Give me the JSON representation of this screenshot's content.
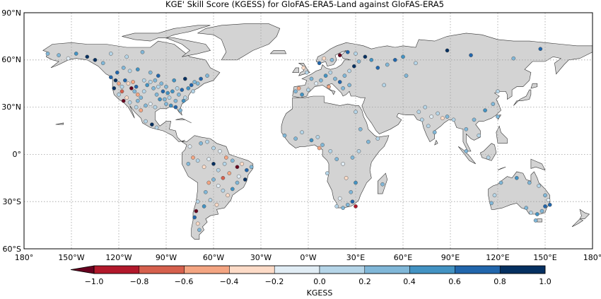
{
  "title": "KGE' Skill Score (KGESS) for GloFAS-ERA5-Land against GloFAS-ERA5",
  "lat_labels": [
    "90°N",
    "60°N",
    "30°N",
    "0°",
    "30°S",
    "60°S"
  ],
  "lon_labels": [
    "180°",
    "150°W",
    "120°W",
    "90°W",
    "60°W",
    "30°W",
    "0°W",
    "30°E",
    "60°E",
    "90°E",
    "120°E",
    "150°E",
    "180°"
  ],
  "colorbar": {
    "label": "KGESS",
    "tick_labels": [
      "−1.0",
      "−0.8",
      "−0.6",
      "−0.4",
      "−0.2",
      "0.0",
      "0.2",
      "0.4",
      "0.6",
      "0.8",
      "1.0"
    ],
    "bins": [
      "#67001f",
      "#b2182b",
      "#d6604d",
      "#f4a582",
      "#fddbc7",
      "#e1edf5",
      "#b5d5e8",
      "#80b7d8",
      "#4393c3",
      "#2166ac",
      "#053061"
    ],
    "arrow_color": "#67001f"
  },
  "colors": {
    "ocean": "#ffffff",
    "land": "#d3d3d3",
    "coast": "#333333",
    "grid": "#a0a0a0"
  },
  "stations": [
    {
      "lon": -125,
      "lat": 49,
      "v": 0.6
    },
    {
      "lon": -122,
      "lat": 47,
      "v": 0.9
    },
    {
      "lon": -120,
      "lat": 45,
      "v": -0.5
    },
    {
      "lon": -118,
      "lat": 43,
      "v": 0.2
    },
    {
      "lon": -116,
      "lat": 47,
      "v": 0.7
    },
    {
      "lon": -114,
      "lat": 45,
      "v": -0.3
    },
    {
      "lon": -112,
      "lat": 42,
      "v": -0.85
    },
    {
      "lon": -110,
      "lat": 40,
      "v": 0.4
    },
    {
      "lon": -108,
      "lat": 38,
      "v": -0.6
    },
    {
      "lon": -106,
      "lat": 36,
      "v": 0.3
    },
    {
      "lon": -104,
      "lat": 40,
      "v": 0.1
    },
    {
      "lon": -102,
      "lat": 44,
      "v": 0.5
    },
    {
      "lon": -100,
      "lat": 46,
      "v": 0.2
    },
    {
      "lon": -98,
      "lat": 42,
      "v": 0.4
    },
    {
      "lon": -96,
      "lat": 38,
      "v": 0.3
    },
    {
      "lon": -94,
      "lat": 35,
      "v": 0.5
    },
    {
      "lon": -92,
      "lat": 40,
      "v": 0.6
    },
    {
      "lon": -90,
      "lat": 43,
      "v": 0.3
    },
    {
      "lon": -88,
      "lat": 36,
      "v": 0.2
    },
    {
      "lon": -86,
      "lat": 40,
      "v": 0.5
    },
    {
      "lon": -84,
      "lat": 34,
      "v": 0.4
    },
    {
      "lon": -82,
      "lat": 38,
      "v": 0.3
    },
    {
      "lon": -80,
      "lat": 41,
      "v": 0.6
    },
    {
      "lon": -78,
      "lat": 36,
      "v": 0.2
    },
    {
      "lon": -76,
      "lat": 42,
      "v": 0.5
    },
    {
      "lon": -74,
      "lat": 44,
      "v": 0.7
    },
    {
      "lon": -72,
      "lat": 46,
      "v": 0.4
    },
    {
      "lon": -70,
      "lat": 45,
      "v": 0.3
    },
    {
      "lon": -97,
      "lat": 30,
      "v": 0.2
    },
    {
      "lon": -100,
      "lat": 32,
      "v": -0.2
    },
    {
      "lon": -103,
      "lat": 31,
      "v": 0.3
    },
    {
      "lon": -106,
      "lat": 28,
      "v": -0.4
    },
    {
      "lon": -109,
      "lat": 30,
      "v": 0.1
    },
    {
      "lon": -117,
      "lat": 34,
      "v": -0.9
    },
    {
      "lon": -120,
      "lat": 38,
      "v": 0.1
    },
    {
      "lon": -123,
      "lat": 42,
      "v": 0.8
    },
    {
      "lon": -121,
      "lat": 52,
      "v": 0.7
    },
    {
      "lon": -117,
      "lat": 55,
      "v": 0.4
    },
    {
      "lon": -113,
      "lat": 53,
      "v": 0.2
    },
    {
      "lon": -108,
      "lat": 54,
      "v": 0.5
    },
    {
      "lon": -100,
      "lat": 52,
      "v": 0.3
    },
    {
      "lon": -95,
      "lat": 50,
      "v": 0.6
    },
    {
      "lon": -130,
      "lat": 58,
      "v": 0.3
    },
    {
      "lon": -135,
      "lat": 60,
      "v": 0.8
    },
    {
      "lon": -140,
      "lat": 62,
      "v": 0.9
    },
    {
      "lon": -147,
      "lat": 64,
      "v": 0.5
    },
    {
      "lon": -152,
      "lat": 61,
      "v": -0.2
    },
    {
      "lon": -158,
      "lat": 63,
      "v": 0.3
    },
    {
      "lon": -165,
      "lat": 64,
      "v": 0.4
    },
    {
      "lon": -125,
      "lat": 64,
      "v": 0.2
    },
    {
      "lon": -115,
      "lat": 62,
      "v": 0.1
    },
    {
      "lon": -105,
      "lat": 65,
      "v": 0.3
    },
    {
      "lon": -85,
      "lat": 47,
      "v": 0.5
    },
    {
      "lon": -78,
      "lat": 48,
      "v": 0.8
    },
    {
      "lon": -68,
      "lat": 48,
      "v": 0.6
    },
    {
      "lon": -64,
      "lat": 50,
      "v": 0.4
    },
    {
      "lon": -90,
      "lat": 32,
      "v": 0.3
    },
    {
      "lon": -87,
      "lat": 31,
      "v": 0.5
    },
    {
      "lon": -81,
      "lat": 28,
      "v": 0.4
    },
    {
      "lon": -84,
      "lat": 30,
      "v": 0.6
    },
    {
      "lon": -103,
      "lat": 21,
      "v": 0.1
    },
    {
      "lon": -99,
      "lat": 19,
      "v": 0.9
    },
    {
      "lon": -96,
      "lat": 17,
      "v": 0.2
    },
    {
      "lon": -118,
      "lat": 40,
      "v": -0.7
    },
    {
      "lon": -111,
      "lat": 46,
      "v": -0.4
    },
    {
      "lon": -109,
      "lat": 43,
      "v": 0.6
    },
    {
      "lon": -104,
      "lat": 47,
      "v": 0.2
    },
    {
      "lon": -97,
      "lat": 47,
      "v": 0.4
    },
    {
      "lon": -93,
      "lat": 45,
      "v": 0.3
    },
    {
      "lon": -89,
      "lat": 39,
      "v": 0.5
    },
    {
      "lon": -83,
      "lat": 42,
      "v": 0.2
    },
    {
      "lon": -79,
      "lat": 34,
      "v": 0.5
    },
    {
      "lon": -115,
      "lat": 36,
      "v": -0.3
    },
    {
      "lon": -113,
      "lat": 33,
      "v": 0.2
    },
    {
      "lon": -108,
      "lat": 34,
      "v": 0.4
    },
    {
      "lon": -95,
      "lat": 43,
      "v": 0.1
    },
    {
      "lon": -91,
      "lat": 35,
      "v": 0.3
    },
    {
      "lon": -73,
      "lat": 40,
      "v": 0.2
    },
    {
      "lon": -60,
      "lat": 4,
      "v": 0.2
    },
    {
      "lon": -56,
      "lat": 2,
      "v": -0.2
    },
    {
      "lon": -52,
      "lat": -2,
      "v": -0.6
    },
    {
      "lon": -48,
      "lat": -4,
      "v": 0.3
    },
    {
      "lon": -45,
      "lat": -8,
      "v": -0.85
    },
    {
      "lon": -42,
      "lat": -6,
      "v": -0.3
    },
    {
      "lon": -39,
      "lat": -10,
      "v": 0.6
    },
    {
      "lon": -36,
      "lat": -8,
      "v": 0.4
    },
    {
      "lon": -50,
      "lat": -12,
      "v": -0.4
    },
    {
      "lon": -54,
      "lat": -15,
      "v": -0.7
    },
    {
      "lon": -57,
      "lat": -10,
      "v": 0.1
    },
    {
      "lon": -60,
      "lat": -6,
      "v": 0.8
    },
    {
      "lon": -63,
      "lat": -3,
      "v": -0.2
    },
    {
      "lon": -66,
      "lat": -8,
      "v": -0.3
    },
    {
      "lon": -70,
      "lat": -4,
      "v": 0.2
    },
    {
      "lon": -73,
      "lat": -2,
      "v": -0.5
    },
    {
      "lon": -76,
      "lat": -6,
      "v": 0.3
    },
    {
      "lon": -75,
      "lat": 5,
      "v": -0.2
    },
    {
      "lon": -68,
      "lat": 7,
      "v": 0.4
    },
    {
      "lon": -64,
      "lat": 8,
      "v": 0.2
    },
    {
      "lon": -45,
      "lat": -18,
      "v": 0.3
    },
    {
      "lon": -48,
      "lat": -22,
      "v": 0.5
    },
    {
      "lon": -51,
      "lat": -26,
      "v": -0.3
    },
    {
      "lon": -54,
      "lat": -23,
      "v": 0.1
    },
    {
      "lon": -57,
      "lat": -20,
      "v": -0.2
    },
    {
      "lon": -60,
      "lat": -16,
      "v": 0.3
    },
    {
      "lon": -63,
      "lat": -18,
      "v": -0.4
    },
    {
      "lon": -65,
      "lat": -24,
      "v": 0.4
    },
    {
      "lon": -62,
      "lat": -29,
      "v": 0.2
    },
    {
      "lon": -58,
      "lat": -32,
      "v": -0.3
    },
    {
      "lon": -66,
      "lat": -33,
      "v": 0.5
    },
    {
      "lon": -70,
      "lat": -30,
      "v": 0.2
    },
    {
      "lon": -71,
      "lat": -36,
      "v": -0.95
    },
    {
      "lon": -72,
      "lat": -40,
      "v": 0.7
    },
    {
      "lon": -70,
      "lat": -44,
      "v": -0.3
    },
    {
      "lon": -69,
      "lat": -48,
      "v": 0.3
    },
    {
      "lon": -44,
      "lat": -14,
      "v": -0.2
    },
    {
      "lon": -40,
      "lat": -16,
      "v": 0.8
    },
    {
      "lon": -53,
      "lat": -6,
      "v": 0.2
    },
    {
      "lon": -3,
      "lat": 55,
      "v": -0.3
    },
    {
      "lon": -1,
      "lat": 52,
      "v": 0.2
    },
    {
      "lon": 2,
      "lat": 48,
      "v": 0.4
    },
    {
      "lon": 5,
      "lat": 45,
      "v": -0.2
    },
    {
      "lon": 8,
      "lat": 47,
      "v": 0.3
    },
    {
      "lon": 11,
      "lat": 50,
      "v": 0.5
    },
    {
      "lon": 14,
      "lat": 52,
      "v": 0.2
    },
    {
      "lon": 17,
      "lat": 48,
      "v": 0.3
    },
    {
      "lon": 20,
      "lat": 46,
      "v": 0.6
    },
    {
      "lon": 23,
      "lat": 50,
      "v": 0.4
    },
    {
      "lon": 26,
      "lat": 53,
      "v": 0.2
    },
    {
      "lon": 29,
      "lat": 56,
      "v": 0.8
    },
    {
      "lon": 32,
      "lat": 59,
      "v": 0.3
    },
    {
      "lon": 36,
      "lat": 62,
      "v": 0.9
    },
    {
      "lon": 40,
      "lat": 60,
      "v": 0.5
    },
    {
      "lon": 30,
      "lat": 64,
      "v": 0.2
    },
    {
      "lon": 25,
      "lat": 65,
      "v": 0.7
    },
    {
      "lon": 20,
      "lat": 63,
      "v": -0.9
    },
    {
      "lon": 15,
      "lat": 60,
      "v": 0.4
    },
    {
      "lon": 10,
      "lat": 61,
      "v": -0.3
    },
    {
      "lon": 7,
      "lat": 58,
      "v": 0.6
    },
    {
      "lon": -8,
      "lat": 40,
      "v": 0.3
    },
    {
      "lon": -4,
      "lat": 38,
      "v": 0.5
    },
    {
      "lon": -6,
      "lat": 42,
      "v": -0.4
    },
    {
      "lon": 0,
      "lat": 41,
      "v": 0.2
    },
    {
      "lon": 13,
      "lat": 43,
      "v": -0.5
    },
    {
      "lon": 22,
      "lat": 42,
      "v": 0.3
    },
    {
      "lon": 26,
      "lat": 44,
      "v": 0.4
    },
    {
      "lon": 44,
      "lat": 55,
      "v": 0.6
    },
    {
      "lon": 50,
      "lat": 57,
      "v": 0.3
    },
    {
      "lon": 55,
      "lat": 60,
      "v": 0.7
    },
    {
      "lon": 60,
      "lat": 62,
      "v": 0.5
    },
    {
      "lon": 68,
      "lat": 58,
      "v": 0.2
    },
    {
      "lon": 88,
      "lat": 66,
      "v": 0.8
    },
    {
      "lon": 103,
      "lat": 63,
      "v": 0.6
    },
    {
      "lon": 130,
      "lat": 61,
      "v": 0.4
    },
    {
      "lon": 147,
      "lat": 67,
      "v": 0.7
    },
    {
      "lon": 62,
      "lat": 50,
      "v": 0.3
    },
    {
      "lon": 48,
      "lat": 44,
      "v": 0.2
    },
    {
      "lon": -15,
      "lat": 12,
      "v": 0.3
    },
    {
      "lon": -8,
      "lat": 10,
      "v": 0.4
    },
    {
      "lon": -4,
      "lat": 14,
      "v": 0.2
    },
    {
      "lon": 2,
      "lat": 9,
      "v": 0.5
    },
    {
      "lon": 6,
      "lat": 11,
      "v": 0.2
    },
    {
      "lon": 9,
      "lat": 6,
      "v": 0.3
    },
    {
      "lon": 14,
      "lat": 2,
      "v": 0.1
    },
    {
      "lon": 18,
      "lat": -3,
      "v": 0.4
    },
    {
      "lon": 22,
      "lat": -6,
      "v": -0.2
    },
    {
      "lon": 28,
      "lat": -2,
      "v": 0.3
    },
    {
      "lon": 32,
      "lat": 2,
      "v": 0.2
    },
    {
      "lon": 33,
      "lat": 16,
      "v": 0.4
    },
    {
      "lon": 30,
      "lat": 27,
      "v": 0.2
    },
    {
      "lon": 38,
      "lat": 8,
      "v": 0.3
    },
    {
      "lon": 12,
      "lat": -12,
      "v": 0.2
    },
    {
      "lon": 24,
      "lat": -15,
      "v": -0.3
    },
    {
      "lon": 30,
      "lat": -18,
      "v": 0.5
    },
    {
      "lon": 27,
      "lat": -24,
      "v": 0.3
    },
    {
      "lon": 20,
      "lat": -28,
      "v": -0.2
    },
    {
      "lon": 25,
      "lat": -32,
      "v": 0.4
    },
    {
      "lon": 28,
      "lat": -30,
      "v": 0.6
    },
    {
      "lon": 30,
      "lat": -33,
      "v": -0.8
    },
    {
      "lon": 22,
      "lat": -34,
      "v": 0.3
    },
    {
      "lon": 18,
      "lat": -33,
      "v": 0.2
    },
    {
      "lon": 47,
      "lat": -19,
      "v": 0.3
    },
    {
      "lon": 44,
      "lat": 10,
      "v": 0.2
    },
    {
      "lon": 7,
      "lat": 4,
      "v": -0.5
    },
    {
      "lon": 72,
      "lat": 22,
      "v": 0.2
    },
    {
      "lon": 76,
      "lat": 18,
      "v": 0.1
    },
    {
      "lon": 78,
      "lat": 24,
      "v": -0.2
    },
    {
      "lon": 80,
      "lat": 14,
      "v": 0.3
    },
    {
      "lon": 82,
      "lat": 26,
      "v": 0.2
    },
    {
      "lon": 85,
      "lat": 23,
      "v": -0.3
    },
    {
      "lon": 74,
      "lat": 30,
      "v": 0.2
    },
    {
      "lon": 70,
      "lat": 27,
      "v": 0.1
    },
    {
      "lon": 88,
      "lat": 24,
      "v": 0.3
    },
    {
      "lon": 92,
      "lat": 22,
      "v": 0.2
    },
    {
      "lon": 100,
      "lat": 16,
      "v": 0.4
    },
    {
      "lon": 105,
      "lat": 22,
      "v": 0.3
    },
    {
      "lon": 108,
      "lat": 12,
      "v": 0.2
    },
    {
      "lon": 112,
      "lat": 28,
      "v": 0.5
    },
    {
      "lon": 117,
      "lat": 32,
      "v": 0.3
    },
    {
      "lon": 120,
      "lat": 40,
      "v": 0.2
    },
    {
      "lon": 100,
      "lat": 2,
      "v": 0.3
    },
    {
      "lon": 114,
      "lat": -2,
      "v": 0.2
    },
    {
      "lon": 120,
      "lat": 24,
      "v": 0.4
    },
    {
      "lon": 116,
      "lat": -31,
      "v": 0.4
    },
    {
      "lon": 118,
      "lat": -26,
      "v": 0.2
    },
    {
      "lon": 122,
      "lat": -18,
      "v": 0.3
    },
    {
      "lon": 132,
      "lat": -15,
      "v": 0.5
    },
    {
      "lon": 140,
      "lat": -18,
      "v": 0.3
    },
    {
      "lon": 146,
      "lat": -20,
      "v": 0.2
    },
    {
      "lon": 150,
      "lat": -26,
      "v": 0.4
    },
    {
      "lon": 152,
      "lat": -29,
      "v": -0.2
    },
    {
      "lon": 150,
      "lat": -33,
      "v": 0.6
    },
    {
      "lon": 148,
      "lat": -36,
      "v": 0.3
    },
    {
      "lon": 145,
      "lat": -38,
      "v": 0.5
    },
    {
      "lon": 141,
      "lat": -37,
      "v": 0.2
    },
    {
      "lon": 138,
      "lat": -34,
      "v": 0.4
    },
    {
      "lon": 144,
      "lat": -42,
      "v": 0.3
    },
    {
      "lon": 153,
      "lat": -32,
      "v": 0.7
    }
  ]
}
